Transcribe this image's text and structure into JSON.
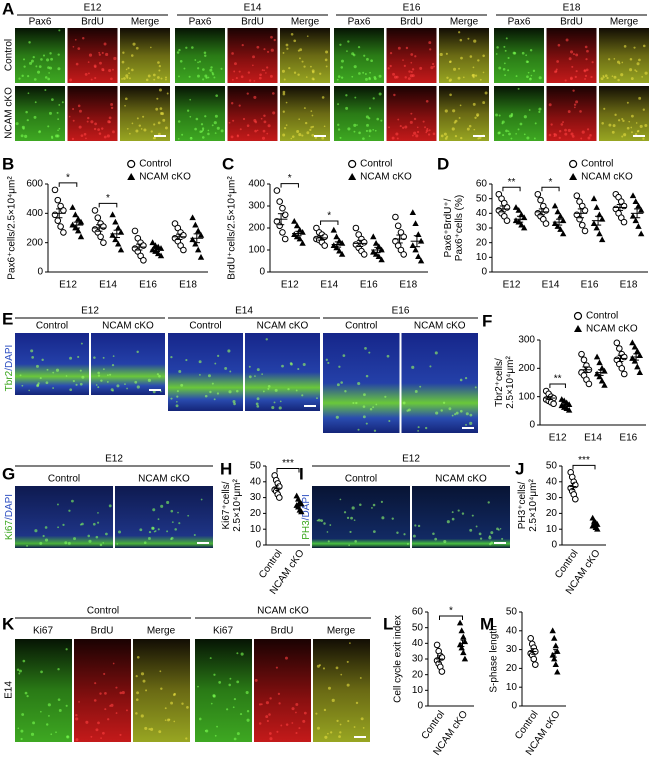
{
  "figure": {
    "A": {
      "label": "A",
      "stages": [
        "E12",
        "E14",
        "E16",
        "E18"
      ],
      "channels": [
        "Pax6",
        "BrdU",
        "Merge"
      ],
      "rows": [
        "Control",
        "NCAM cKO"
      ]
    },
    "E": {
      "label": "E",
      "stages": [
        "E12",
        "E14",
        "E16"
      ],
      "groups": [
        "Control",
        "NCAM cKO"
      ],
      "stain": [
        "Tbr2",
        "/DAPI"
      ]
    },
    "G": {
      "label": "G",
      "stage": "E12",
      "groups": [
        "Control",
        "NCAM  cKO"
      ],
      "stain": [
        "Ki67",
        "/DAPI"
      ]
    },
    "I": {
      "label": "I",
      "stage": "E12",
      "groups": [
        "Control",
        "NCAM cKO"
      ],
      "stain": [
        "PH3",
        "/DAPI"
      ]
    },
    "K": {
      "label": "K",
      "stage": "E14",
      "groups": [
        "Control",
        "NCAM cKO"
      ],
      "channels": [
        "Ki67",
        "BrdU",
        "Merge"
      ]
    }
  },
  "chart_data": [
    {
      "type": "dot",
      "panel": "B",
      "ylabel": [
        "Pax6⁺cells/2.5×10⁴μm²"
      ],
      "ylim": [
        0,
        600
      ],
      "yticks": [
        0,
        200,
        400,
        600
      ],
      "categories": [
        "E12",
        "E14",
        "E16",
        "E18"
      ],
      "legend": "top-right",
      "series": [
        {
          "name": "Control",
          "marker": "circle",
          "values": [
            [
              560,
              490,
              450,
              420,
              390,
              350,
              310,
              270
            ],
            [
              420,
              370,
              330,
              310,
              290,
              270,
              240,
              200
            ],
            [
              280,
              230,
              200,
              180,
              160,
              140,
              110,
              80
            ],
            [
              330,
              300,
              270,
              250,
              230,
              210,
              180,
              150
            ]
          ],
          "mean": [
            400,
            300,
            170,
            240
          ],
          "sem": [
            30,
            22,
            20,
            18
          ]
        },
        {
          "name": "NCAM cKO",
          "marker": "triangle",
          "values": [
            [
              440,
              390,
              360,
              340,
              320,
              300,
              280,
              240
            ],
            [
              390,
              340,
              300,
              270,
              250,
              220,
              190,
              150
            ],
            [
              200,
              180,
              170,
              160,
              150,
              140,
              125,
              110
            ],
            [
              370,
              320,
              280,
              250,
              220,
              190,
              150,
              100
            ]
          ],
          "mean": [
            320,
            260,
            150,
            230
          ],
          "sem": [
            20,
            25,
            10,
            30
          ]
        }
      ],
      "annotations": [
        {
          "text": "*",
          "category": "E12"
        },
        {
          "text": "*",
          "category": "E14"
        }
      ]
    },
    {
      "type": "dot",
      "panel": "C",
      "ylabel": [
        "BrdU⁺cells/2.5×10⁴μm²"
      ],
      "ylim": [
        0,
        400
      ],
      "yticks": [
        0,
        100,
        200,
        300,
        400
      ],
      "categories": [
        "E12",
        "E14",
        "E16",
        "E18"
      ],
      "legend": "top-right",
      "series": [
        {
          "name": "Control",
          "marker": "circle",
          "values": [
            [
              370,
              320,
              290,
              260,
              230,
              210,
              180,
              150
            ],
            [
              200,
              180,
              170,
              160,
              150,
              145,
              135,
              120
            ],
            [
              200,
              170,
              150,
              135,
              125,
              110,
              95,
              80
            ],
            [
              250,
              210,
              180,
              160,
              140,
              120,
              100,
              80
            ]
          ],
          "mean": [
            240,
            155,
            130,
            150
          ],
          "sem": [
            25,
            10,
            14,
            18
          ]
        },
        {
          "name": "NCAM cKO",
          "marker": "triangle",
          "values": [
            [
              230,
              210,
              190,
              180,
              170,
              160,
              150,
              130
            ],
            [
              190,
              160,
              140,
              130,
              120,
              110,
              95,
              80
            ],
            [
              160,
              130,
              115,
              100,
              90,
              80,
              70,
              55
            ],
            [
              270,
              220,
              170,
              140,
              120,
              100,
              70,
              50
            ]
          ],
          "mean": [
            175,
            125,
            100,
            140
          ],
          "sem": [
            10,
            12,
            12,
            25
          ]
        }
      ],
      "annotations": [
        {
          "text": "*",
          "category": "E12"
        },
        {
          "text": "*",
          "category": "E14"
        }
      ]
    },
    {
      "type": "dot",
      "panel": "D",
      "ylabel": [
        "Pax6⁺BrdU⁺/",
        "Pax6⁺cells (%)"
      ],
      "ylim": [
        0,
        60
      ],
      "yticks": [
        0,
        10,
        20,
        30,
        40,
        50,
        60
      ],
      "categories": [
        "E12",
        "E14",
        "E16",
        "E18"
      ],
      "legend": "top-right",
      "series": [
        {
          "name": "Control",
          "marker": "circle",
          "values": [
            [
              53,
              50,
              47,
              44,
              42,
              40,
              38,
              35
            ],
            [
              53,
              49,
              45,
              42,
              40,
              38,
              36,
              33
            ],
            [
              52,
              48,
              45,
              42,
              39,
              36,
              32,
              28
            ],
            [
              53,
              51,
              48,
              45,
              43,
              40,
              37,
              34
            ]
          ],
          "mean": [
            43,
            41,
            40,
            44
          ],
          "sem": [
            2,
            2,
            3,
            2
          ]
        },
        {
          "name": "NCAM cKO",
          "marker": "triangle",
          "values": [
            [
              44,
              42,
              39,
              37,
              35,
              34,
              32,
              30
            ],
            [
              45,
              41,
              38,
              35,
              33,
              31,
              29,
              26
            ],
            [
              50,
              44,
              39,
              36,
              33,
              30,
              26,
              22
            ],
            [
              52,
              48,
              45,
              42,
              38,
              35,
              31,
              26
            ]
          ],
          "mean": [
            36,
            34,
            35,
            40
          ],
          "sem": [
            2,
            2,
            3,
            3
          ]
        }
      ],
      "annotations": [
        {
          "text": "**",
          "category": "E12"
        },
        {
          "text": "*",
          "category": "E14"
        }
      ]
    },
    {
      "type": "dot",
      "panel": "F",
      "ylabel": [
        "Tbr2⁺cells/",
        "2.5×10⁴μm²"
      ],
      "ylim": [
        0,
        300
      ],
      "yticks": [
        0,
        100,
        200,
        300
      ],
      "categories": [
        "E12",
        "E14",
        "E16"
      ],
      "legend": "top",
      "series": [
        {
          "name": "Control",
          "marker": "circle",
          "values": [
            [
              120,
              110,
              100,
              95,
              90,
              85,
              80,
              75
            ],
            [
              250,
              230,
              210,
              195,
              185,
              175,
              160,
              145
            ],
            [
              290,
              270,
              250,
              240,
              230,
              215,
              200,
              180
            ]
          ],
          "mean": [
            95,
            195,
            235
          ],
          "sem": [
            5,
            10,
            11
          ]
        },
        {
          "name": "NCAM cKO",
          "marker": "triangle",
          "values": [
            [
              90,
              85,
              78,
              72,
              68,
              62,
              58,
              52
            ],
            [
              240,
              220,
              200,
              190,
              180,
              170,
              155,
              140
            ],
            [
              290,
              275,
              260,
              245,
              235,
              225,
              205,
              185
            ]
          ],
          "mean": [
            70,
            185,
            240
          ],
          "sem": [
            4,
            10,
            11
          ]
        }
      ],
      "annotations": [
        {
          "text": "**",
          "category": "E12"
        }
      ]
    },
    {
      "type": "dot",
      "panel": "H",
      "ylabel": [
        "Ki67⁺cells/",
        "2.5×10⁴μm²"
      ],
      "ylim": [
        0,
        50
      ],
      "yticks": [
        0,
        10,
        20,
        30,
        40,
        50
      ],
      "categories": [
        "Control",
        "NCAM cKO"
      ],
      "markers": [
        "circle",
        "triangle"
      ],
      "values": [
        [
          44,
          41,
          39,
          37,
          35,
          34,
          32,
          30
        ],
        [
          31,
          29,
          27,
          26,
          25,
          24,
          22,
          21
        ]
      ],
      "mean": [
        36,
        25
      ],
      "sem": [
        1.5,
        1
      ],
      "annotations": [
        {
          "text": "***"
        }
      ]
    },
    {
      "type": "dot",
      "panel": "J",
      "ylabel": [
        "PH3⁺cells/",
        "2.5×10⁴μm²"
      ],
      "ylim": [
        0,
        50
      ],
      "yticks": [
        0,
        10,
        20,
        30,
        40,
        50
      ],
      "categories": [
        "Control",
        "NCAM cKO"
      ],
      "markers": [
        "circle",
        "triangle"
      ],
      "values": [
        [
          46,
          43,
          40,
          38,
          36,
          34,
          32,
          29
        ],
        [
          17,
          15,
          14,
          13,
          12,
          12,
          11,
          10
        ]
      ],
      "mean": [
        37,
        13
      ],
      "sem": [
        2,
        1
      ],
      "annotations": [
        {
          "text": "***"
        }
      ]
    },
    {
      "type": "dot",
      "panel": "L",
      "ylabel": [
        "Cell cycle exit index"
      ],
      "ylim": [
        0,
        60
      ],
      "yticks": [
        0,
        10,
        20,
        30,
        40,
        50,
        60
      ],
      "categories": [
        "Control",
        "NCAM cKO"
      ],
      "markers": [
        "circle",
        "triangle"
      ],
      "values": [
        [
          39,
          35,
          32,
          31,
          29,
          27,
          25,
          22
        ],
        [
          53,
          48,
          44,
          41,
          39,
          37,
          34,
          30
        ]
      ],
      "mean": [
        30,
        40
      ],
      "sem": [
        2,
        2
      ],
      "annotations": [
        {
          "text": "*"
        }
      ]
    },
    {
      "type": "dot",
      "panel": "M",
      "ylabel": [
        "S-phase length"
      ],
      "ylim": [
        0,
        50
      ],
      "yticks": [
        0,
        10,
        20,
        30,
        40,
        50
      ],
      "categories": [
        "Control",
        "NCAM cKO"
      ],
      "markers": [
        "circle",
        "triangle"
      ],
      "values": [
        [
          36,
          33,
          31,
          29,
          28,
          27,
          25,
          22
        ],
        [
          40,
          36,
          32,
          29,
          27,
          25,
          22,
          18
        ]
      ],
      "mean": [
        29,
        28
      ],
      "sem": [
        1.5,
        2
      ],
      "annotations": []
    }
  ]
}
